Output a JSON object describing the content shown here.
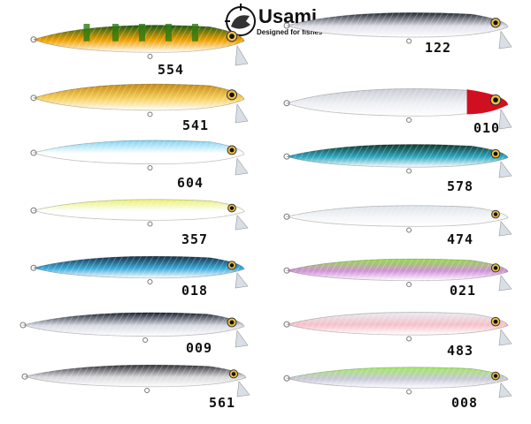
{
  "logo": {
    "brand": "Usami",
    "tagline": "Designed for fishes",
    "icon": "fish-skull-crosshair-icon"
  },
  "lures": [
    {
      "code": "554",
      "back": "#1a5a10",
      "belly": "#f0a000",
      "pattern": "perch-bars"
    },
    {
      "code": "541",
      "back": "#c88a10",
      "belly": "#f5d060"
    },
    {
      "code": "604",
      "back": "#7fd3f0",
      "belly": "#ffffff"
    },
    {
      "code": "357",
      "back": "#e8f070",
      "belly": "#ffffff"
    },
    {
      "code": "018",
      "back": "#143048",
      "belly": "#3aa8d8"
    },
    {
      "code": "009",
      "back": "#1d2230",
      "belly": "#d8dce4"
    },
    {
      "code": "561",
      "back": "#303035",
      "belly": "#d8d8dc"
    },
    {
      "code": "122",
      "back": "#202830",
      "belly": "#e0e0ea"
    },
    {
      "code": "010",
      "back": "#c8ccd4",
      "belly": "#eef0f4",
      "head": "#d01020"
    },
    {
      "code": "578",
      "back": "#0d3a30",
      "belly": "#30a8c0"
    },
    {
      "code": "474",
      "back": "#dde3ea",
      "belly": "#f4f6f8"
    },
    {
      "code": "021",
      "back": "#90e040",
      "belly": "#d090d8"
    },
    {
      "code": "483",
      "back": "#e8ecf2",
      "belly": "#f4c0c8"
    },
    {
      "code": "008",
      "back": "#a0e860",
      "belly": "#c8c8d8"
    }
  ]
}
